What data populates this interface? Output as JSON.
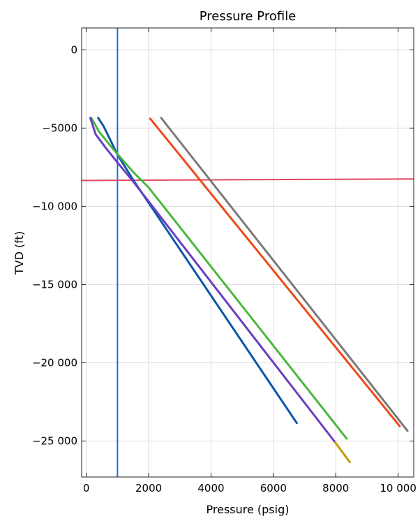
{
  "chart_data": {
    "type": "line",
    "title": "Pressure Profile",
    "xlabel": "Pressure (psig)",
    "ylabel": "TVD (ft)",
    "xlim": [
      -150,
      10500
    ],
    "ylim": [
      -27300,
      1400
    ],
    "grid": true,
    "x_ticks": [
      0,
      2000,
      4000,
      6000,
      8000,
      10000
    ],
    "x_tick_labels": [
      "0",
      "2000",
      "4000",
      "6000",
      "8000",
      "10 000"
    ],
    "y_ticks": [
      0,
      -5000,
      -10000,
      -15000,
      -20000,
      -25000
    ],
    "y_tick_labels": [
      "0",
      "−5000",
      "−10 000",
      "−15 000",
      "−20 000",
      "−25 000"
    ],
    "series": [
      {
        "color": "#1f6fd0",
        "width": 2,
        "points": [
          [
            1000,
            1350
          ],
          [
            1000,
            -27300
          ]
        ]
      },
      {
        "color": "#e0475f",
        "width": 2,
        "points": [
          [
            -150,
            -8350
          ],
          [
            10500,
            -8250
          ]
        ]
      },
      {
        "color": "#7a7a7a",
        "width": 3,
        "points": [
          [
            2400,
            -4350
          ],
          [
            10300,
            -24350
          ]
        ]
      },
      {
        "color": "#ee4a1b",
        "width": 3,
        "points": [
          [
            2050,
            -4400
          ],
          [
            10050,
            -24050
          ]
        ]
      },
      {
        "color": "#0a57a8",
        "width": 3,
        "points": [
          [
            380,
            -4350
          ],
          [
            560,
            -4900
          ],
          [
            1000,
            -6700
          ],
          [
            1500,
            -8300
          ],
          [
            6750,
            -23850
          ]
        ]
      },
      {
        "color": "#49b83c",
        "width": 3,
        "points": [
          [
            160,
            -4350
          ],
          [
            400,
            -5200
          ],
          [
            800,
            -6200
          ],
          [
            1500,
            -7800
          ],
          [
            2000,
            -8800
          ],
          [
            8350,
            -24850
          ]
        ]
      },
      {
        "color": "#c49a00",
        "width": 3,
        "points": [
          [
            7950,
            -25000
          ],
          [
            8450,
            -26350
          ]
        ]
      },
      {
        "color": "#6a3fc0",
        "width": 3,
        "points": [
          [
            130,
            -4350
          ],
          [
            300,
            -5400
          ],
          [
            600,
            -6200
          ],
          [
            1000,
            -7200
          ],
          [
            1500,
            -8400
          ],
          [
            7950,
            -25000
          ]
        ]
      }
    ]
  }
}
